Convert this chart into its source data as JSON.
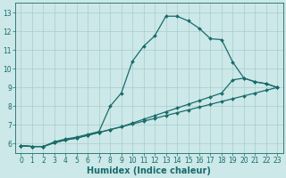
{
  "xlabel": "Humidex (Indice chaleur)",
  "bg_color": "#cce8e8",
  "line_color": "#1a6b6b",
  "xlim": [
    -0.5,
    23.5
  ],
  "ylim": [
    5.5,
    13.5
  ],
  "yticks": [
    6,
    7,
    8,
    9,
    10,
    11,
    12,
    13
  ],
  "xticks": [
    0,
    1,
    2,
    3,
    4,
    5,
    6,
    7,
    8,
    9,
    10,
    11,
    12,
    13,
    14,
    15,
    16,
    17,
    18,
    19,
    20,
    21,
    22,
    23
  ],
  "line1_x": [
    0,
    1,
    2,
    3,
    4,
    5,
    6,
    7,
    8,
    9,
    10,
    11,
    12,
    13,
    14,
    15,
    16,
    17,
    18,
    19,
    20,
    21,
    22,
    23
  ],
  "line1_y": [
    5.9,
    5.85,
    5.85,
    6.1,
    6.25,
    6.35,
    6.5,
    6.65,
    8.0,
    8.7,
    10.4,
    11.2,
    11.75,
    12.8,
    12.8,
    12.55,
    12.15,
    11.6,
    11.55,
    10.35,
    9.5,
    9.3,
    9.2,
    9.0
  ],
  "line2_x": [
    0,
    1,
    2,
    3,
    4,
    5,
    6,
    7,
    8,
    9,
    10,
    11,
    12,
    13,
    14,
    15,
    16,
    17,
    18,
    19,
    20,
    21,
    22,
    23
  ],
  "line2_y": [
    5.9,
    5.85,
    5.85,
    6.05,
    6.2,
    6.3,
    6.45,
    6.6,
    6.75,
    6.9,
    7.1,
    7.3,
    7.5,
    7.7,
    7.9,
    8.1,
    8.3,
    8.5,
    8.7,
    9.4,
    9.5,
    9.3,
    9.2,
    9.0
  ],
  "line3_x": [
    0,
    1,
    2,
    3,
    4,
    5,
    6,
    7,
    8,
    9,
    10,
    11,
    12,
    13,
    14,
    15,
    16,
    17,
    18,
    19,
    20,
    21,
    22,
    23
  ],
  "line3_y": [
    5.9,
    5.85,
    5.85,
    6.05,
    6.2,
    6.3,
    6.45,
    6.6,
    6.75,
    6.9,
    7.05,
    7.2,
    7.35,
    7.5,
    7.65,
    7.8,
    7.95,
    8.1,
    8.25,
    8.4,
    8.55,
    8.7,
    8.85,
    9.0
  ],
  "grid_color": "#aacccc",
  "marker": "D",
  "markersize": 2.0,
  "linewidth": 0.9,
  "tick_labelsize": 5.5,
  "xlabel_fontsize": 7
}
